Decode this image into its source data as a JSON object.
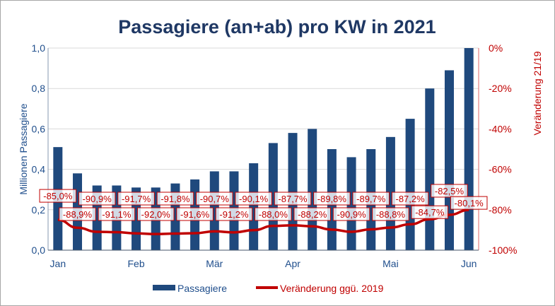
{
  "chart_data": {
    "type": "bar+line",
    "title": "Passagiere (an+ab) pro KW in 2021",
    "ylabel": "Millionen Passagiere",
    "y2label": "Veränderung 21/19",
    "ylim": [
      0,
      1.0
    ],
    "y2lim": [
      -100,
      0
    ],
    "yticks": [
      "0,0",
      "0,2",
      "0,4",
      "0,6",
      "0,8",
      "1,0"
    ],
    "y2ticks": [
      "-100%",
      "-80%",
      "-60%",
      "-40%",
      "-20%",
      "0%"
    ],
    "xticks": [
      {
        "label": "Jan",
        "index": 0
      },
      {
        "label": "Feb",
        "index": 4
      },
      {
        "label": "Mär",
        "index": 8
      },
      {
        "label": "Apr",
        "index": 12
      },
      {
        "label": "Mai",
        "index": 17
      },
      {
        "label": "Jun",
        "index": 21
      }
    ],
    "grid": true,
    "legend_position": "bottom",
    "series": [
      {
        "name": "Passagiere",
        "type": "bar",
        "axis": "left",
        "color": "#1f497d",
        "values": [
          0.51,
          0.38,
          0.32,
          0.32,
          0.31,
          0.31,
          0.33,
          0.35,
          0.39,
          0.39,
          0.43,
          0.53,
          0.58,
          0.6,
          0.5,
          0.46,
          0.5,
          0.56,
          0.65,
          0.8,
          0.89,
          1.0
        ]
      },
      {
        "name": "Veränderung ggü. 2019",
        "type": "line",
        "axis": "right",
        "color": "#c00000",
        "values": [
          -85.0,
          -88.9,
          -90.9,
          -91.1,
          -91.7,
          -92.0,
          -91.8,
          -91.6,
          -90.7,
          -91.2,
          -90.1,
          -88.0,
          -87.7,
          -88.2,
          -89.8,
          -90.9,
          -89.7,
          -88.8,
          -87.2,
          -84.7,
          -82.5,
          -80.1
        ],
        "labels": [
          "-85,0%",
          "-88,9%",
          "-90,9%",
          "-91,1%",
          "-91,7%",
          "-92,0%",
          "-91,8%",
          "-91,6%",
          "-90,7%",
          "-91,2%",
          "-90,1%",
          "-88,0%",
          "-87,7%",
          "-88,2%",
          "-89,8%",
          "-90,9%",
          "-89,7%",
          "-88,8%",
          "-87,2%",
          "-84,7%",
          "-82,5%",
          "-80,1%"
        ]
      }
    ]
  }
}
